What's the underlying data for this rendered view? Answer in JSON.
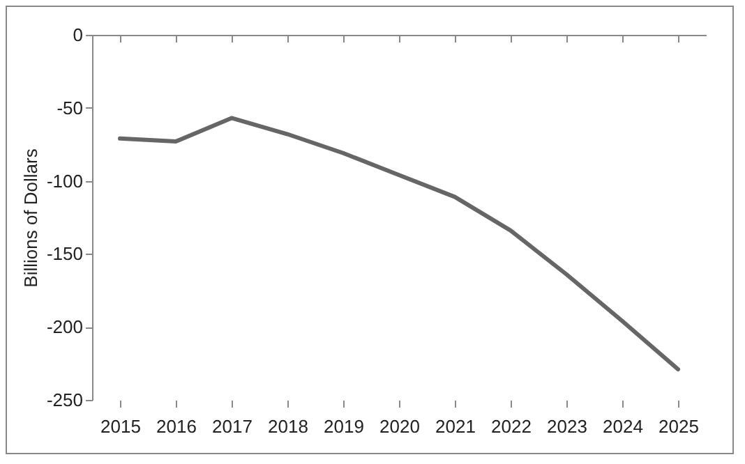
{
  "chart_data": {
    "type": "line",
    "ylabel": "Billions of Dollars",
    "categories": [
      "2015",
      "2016",
      "2017",
      "2018",
      "2019",
      "2020",
      "2021",
      "2022",
      "2023",
      "2024",
      "2025"
    ],
    "series": [
      {
        "color": "#666666",
        "values": [
          -71,
          -73,
          -57,
          -68,
          -81,
          -96,
          -111,
          -134,
          -164,
          -196,
          -229
        ]
      }
    ],
    "ylim": [
      -250,
      0
    ],
    "yticks": [
      -250,
      -200,
      -150,
      -100,
      -50,
      0
    ],
    "grid": false,
    "marker": "none",
    "line_style": "solid"
  }
}
